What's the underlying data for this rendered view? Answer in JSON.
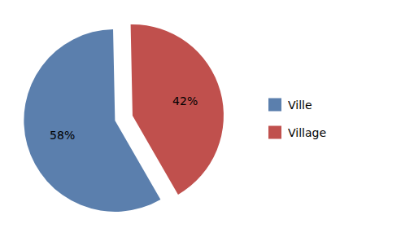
{
  "chart_data": {
    "type": "pie",
    "categories": [
      "Ville",
      "Village"
    ],
    "values": [
      58,
      42
    ],
    "value_labels": [
      "58%",
      "42%"
    ],
    "colors": [
      "#5b7fad",
      "#c0504d"
    ],
    "data_labels": true,
    "legend": "right"
  }
}
